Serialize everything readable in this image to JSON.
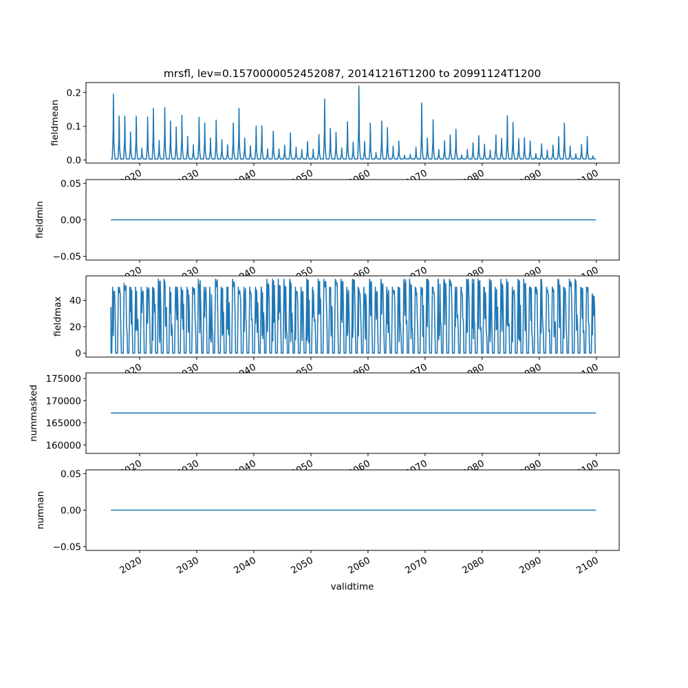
{
  "chart_data": {
    "type": "line",
    "title": "mrsfl, lev=0.1570000052452087, 20141216T1200 to 20991124T1200",
    "xlabel": "validtime",
    "xlim": [
      2010.6,
      2104.0
    ],
    "xticks": [
      "2020",
      "2030",
      "2040",
      "2050",
      "2060",
      "2070",
      "2080",
      "2090",
      "2100"
    ],
    "xtick_values": [
      2020,
      2030,
      2040,
      2050,
      2060,
      2070,
      2080,
      2090,
      2100
    ],
    "x_start": 2014.96,
    "x_end": 2099.9,
    "line_color": "#1f77b4",
    "panels": [
      {
        "ylabel": "fieldmean",
        "ylim": [
          -0.009,
          0.229
        ],
        "yticks": [
          {
            "v": 0,
            "label": "0.0"
          },
          {
            "v": 0.1,
            "label": "0.1"
          },
          {
            "v": 0.2,
            "label": "0.2"
          }
        ],
        "kind": "annual_spike",
        "baseline": 0.003,
        "annual_peaks": [
          0.195,
          0.13,
          0.13,
          0.083,
          0.13,
          0.035,
          0.127,
          0.153,
          0.058,
          0.155,
          0.115,
          0.098,
          0.132,
          0.07,
          0.045,
          0.126,
          0.11,
          0.065,
          0.118,
          0.06,
          0.045,
          0.11,
          0.153,
          0.065,
          0.042,
          0.1,
          0.101,
          0.033,
          0.085,
          0.033,
          0.044,
          0.08,
          0.038,
          0.031,
          0.055,
          0.032,
          0.075,
          0.18,
          0.094,
          0.082,
          0.036,
          0.113,
          0.053,
          0.219,
          0.055,
          0.109,
          0.022,
          0.115,
          0.096,
          0.041,
          0.056,
          0.014,
          0.017,
          0.037,
          0.169,
          0.065,
          0.119,
          0.031,
          0.057,
          0.074,
          0.091,
          0.015,
          0.031,
          0.051,
          0.072,
          0.047,
          0.029,
          0.074,
          0.064,
          0.131,
          0.111,
          0.063,
          0.066,
          0.056,
          0.019,
          0.048,
          0.029,
          0.044,
          0.069,
          0.109,
          0.041,
          0.018,
          0.046,
          0.07,
          0.012
        ]
      },
      {
        "ylabel": "fieldmin",
        "ylim": [
          -0.055,
          0.055
        ],
        "yticks": [
          {
            "v": -0.05,
            "label": "−0.05"
          },
          {
            "v": 0,
            "label": "0.00"
          },
          {
            "v": 0.05,
            "label": "0.05"
          }
        ],
        "kind": "constant",
        "value": 0
      },
      {
        "ylabel": "fieldmax",
        "ylim": [
          -3,
          58.5
        ],
        "yticks": [
          {
            "v": 0,
            "label": "0"
          },
          {
            "v": 20,
            "label": "20"
          },
          {
            "v": 40,
            "label": "40"
          }
        ],
        "kind": "annual_plateau",
        "annual_peaks": [
          50,
          50,
          53,
          50,
          50,
          50,
          50,
          50,
          56,
          56,
          50,
          50,
          50,
          50,
          50,
          56,
          50,
          50,
          56,
          50,
          50,
          56,
          50,
          50,
          50,
          50,
          50,
          56,
          56,
          56,
          56,
          56,
          50,
          50,
          56,
          50,
          56,
          56,
          50,
          56,
          56,
          50,
          56,
          50,
          50,
          56,
          50,
          56,
          50,
          50,
          50,
          56,
          56,
          50,
          50,
          56,
          50,
          56,
          56,
          56,
          50,
          50,
          56,
          56,
          56,
          50,
          56,
          50,
          56,
          56,
          50,
          56,
          56,
          50,
          50,
          56,
          50,
          50,
          56,
          50,
          56,
          56,
          50,
          50,
          45
        ]
      },
      {
        "ylabel": "nummasked",
        "ylim": [
          158100,
          176250
        ],
        "yticks": [
          {
            "v": 160000,
            "label": "160000"
          },
          {
            "v": 165000,
            "label": "165000"
          },
          {
            "v": 170000,
            "label": "170000"
          },
          {
            "v": 175000,
            "label": "175000"
          }
        ],
        "kind": "constant",
        "value": 167200
      },
      {
        "ylabel": "numnan",
        "ylim": [
          -0.055,
          0.055
        ],
        "yticks": [
          {
            "v": -0.05,
            "label": "−0.05"
          },
          {
            "v": 0,
            "label": "0.00"
          },
          {
            "v": 0.05,
            "label": "0.05"
          }
        ],
        "kind": "constant",
        "value": 0
      }
    ]
  }
}
